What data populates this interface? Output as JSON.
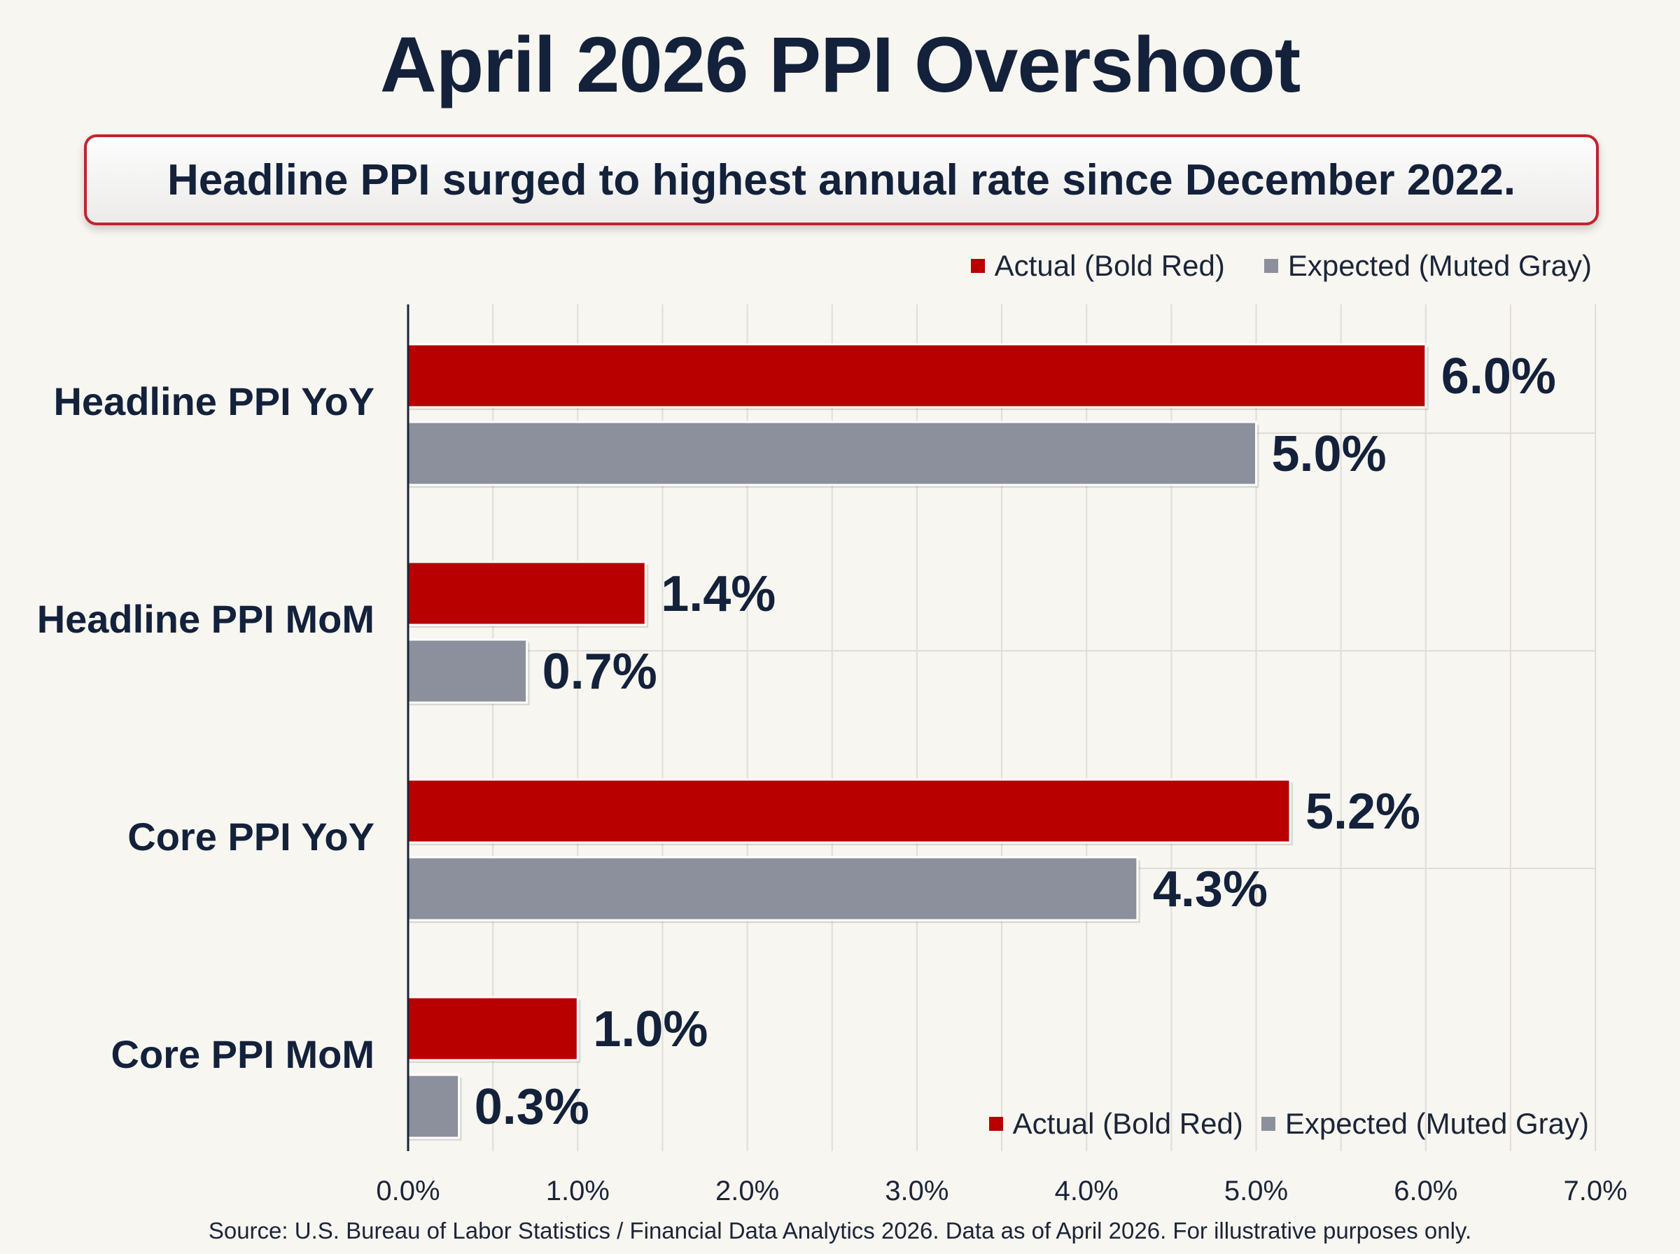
{
  "title": "April 2026 PPI Overshoot",
  "subtitle": "Headline PPI surged to highest annual rate since December 2022.",
  "legend": {
    "actual": "Actual (Bold Red)",
    "expected": "Expected (Muted Gray)"
  },
  "source": "Source: U.S. Bureau of Labor Statistics / Financial Data Analytics 2026. Data as of April 2026. For illustrative purposes only.",
  "colors": {
    "actual": "#b80000",
    "expected": "#8c909c",
    "text": "#13213b",
    "grid": "#e0ddd6",
    "background": "#f8f6f1"
  },
  "chart_data": {
    "type": "bar",
    "orientation": "horizontal",
    "categories": [
      "Headline PPI YoY",
      "Headline PPI MoM",
      "Core PPI YoY",
      "Core PPI MoM"
    ],
    "series": [
      {
        "name": "Actual (Bold Red)",
        "values": [
          6.0,
          1.4,
          5.2,
          1.0
        ],
        "labels": [
          "6.0%",
          "1.4%",
          "5.2%",
          "1.0%"
        ]
      },
      {
        "name": "Expected (Muted Gray)",
        "values": [
          5.0,
          0.7,
          4.3,
          0.3
        ],
        "labels": [
          "5.0%",
          "0.7%",
          "4.3%",
          "0.3%"
        ]
      }
    ],
    "xlim": [
      0,
      7
    ],
    "xticks": [
      "0.0%",
      "1.0%",
      "2.0%",
      "3.0%",
      "4.0%",
      "5.0%",
      "6.0%",
      "7.0%"
    ],
    "grid": true,
    "legend_position": "top-right and bottom-right"
  }
}
